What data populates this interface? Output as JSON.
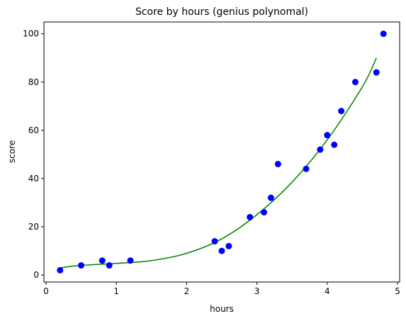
{
  "chart_data": {
    "type": "scatter",
    "title": "Score by hours (genius polynomal)",
    "xlabel": "hours",
    "ylabel": "score",
    "xlim": [
      -0.03,
      5.03
    ],
    "ylim": [
      -2.9,
      104.9
    ],
    "xticks": [
      0,
      1,
      2,
      3,
      4,
      5
    ],
    "yticks": [
      0,
      20,
      40,
      60,
      80,
      100
    ],
    "grid": false,
    "colors": {
      "points": "#0000ff",
      "fit_line": "#008000",
      "axes": "#000000"
    },
    "series": [
      {
        "kind": "scatter",
        "x": [
          0.2,
          0.5,
          0.8,
          0.9,
          1.2,
          2.4,
          2.5,
          2.6,
          2.9,
          3.1,
          3.2,
          3.3,
          3.7,
          3.9,
          4.0,
          4.1,
          4.2,
          4.4,
          4.7,
          4.8
        ],
        "y": [
          2,
          4,
          6,
          4,
          6,
          14,
          10,
          12,
          24,
          26,
          32,
          46,
          44,
          52,
          58,
          54,
          68,
          80,
          84,
          100
        ]
      },
      {
        "kind": "line",
        "x": [
          0.2,
          0.5,
          1.0,
          1.5,
          2.0,
          2.5,
          3.0,
          3.5,
          4.0,
          4.5,
          4.7
        ],
        "y": [
          3.0,
          4.0,
          4.8,
          6.0,
          9.0,
          15.0,
          25.0,
          38.5,
          56.0,
          78.0,
          90.0
        ]
      }
    ]
  }
}
